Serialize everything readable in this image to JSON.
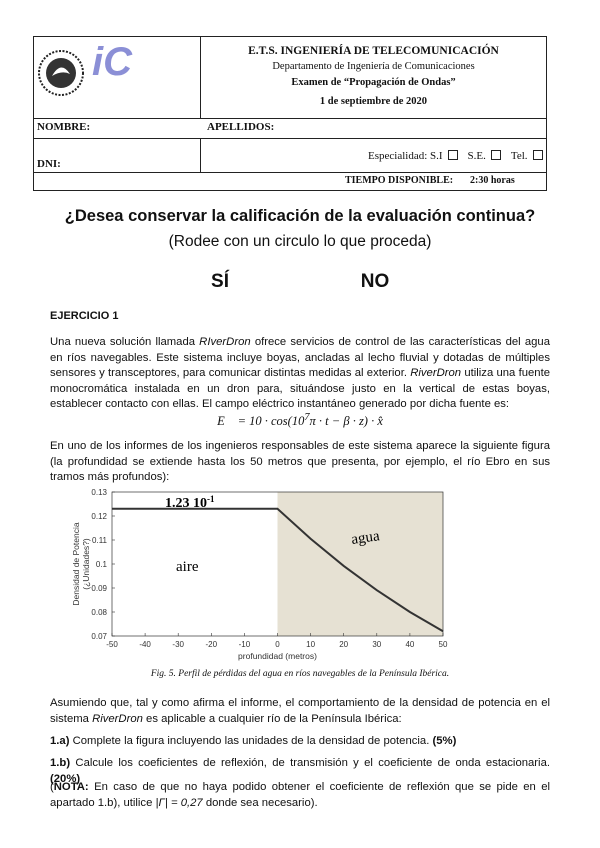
{
  "header": {
    "logo_text": "iC",
    "school": "E.T.S. INGENIERÍA DE TELECOMUNICACIÓN",
    "department": "Departamento de Ingeniería de Comunicaciones",
    "exam": "Examen de “Propagación de Ondas”",
    "date": "1 de septiembre de 2020",
    "nombre": "NOMBRE:",
    "apellidos": "APELLIDOS:",
    "dni": "DNI:",
    "especialidad": "Especialidad:",
    "options": [
      "S.I",
      "S.E.",
      "Tel."
    ],
    "tiempo_label": "TIEMPO DISPONIBLE:",
    "tiempo": "2:30 horas"
  },
  "question": {
    "title": "¿Desea conservar la calificación de la evaluación continua?",
    "subtitle": "(Rodee con un circulo lo que proceda)",
    "yes": "SÍ",
    "no": "NO"
  },
  "exercise": {
    "title": "EJERCICIO  1",
    "paragraph1": [
      "Una nueva solución llamada ",
      {
        "t": "RIverDron",
        "i": true
      },
      " ofrece servicios de control de las características del agua en ríos navegables. Este sistema incluye boyas, ancladas al lecho fluvial y dotadas de múltiples sensores y transceptores, para comunicar distintas medidas al exterior. ",
      {
        "t": "RiverDron",
        "i": true
      },
      " utiliza una fuente monocromática instalada en un dron para, situándose justo en la vertical de estas boyas, establecer contacto con ellas. El campo eléctrico instantáneo generado por dicha fuente es:"
    ],
    "formula": [
      "E⃗ = 10 · cos(10",
      {
        "t": "7",
        "sup": true
      },
      "π · t − β · z) · x̂"
    ],
    "paragraph2": [
      "En uno de los informes de los ingenieros responsables de este sistema aparece la siguiente figura (la profundidad se extiende hasta los 50 metros que presenta, por ejemplo, el río Ebro en sus tramos más profundos):"
    ],
    "caption": "Fig. 5. Perfil de pérdidas del agua en ríos navegables de la Península Ibérica.",
    "paragraph3": [
      "Asumiendo que, tal y como afirma el informe, el comportamiento de la densidad de potencia en el sistema ",
      {
        "t": "RiverDron",
        "i": true
      },
      " es aplicable a cualquier río de la Península Ibérica:"
    ],
    "item_a": [
      {
        "t": "1.a)",
        "b": true
      },
      " Complete la figura incluyendo las unidades de la densidad de potencia. ",
      {
        "t": "(5%)",
        "b": true
      }
    ],
    "item_b": [
      {
        "t": "1.b)",
        "b": true
      },
      " Calcule los coeficientes de reflexión, de transmisión y el coeficiente de onda estacionaria. ",
      {
        "t": "(20%)",
        "b": true
      }
    ],
    "note": [
      "(",
      {
        "t": "NOTA:",
        "b": true
      },
      " En caso de que no haya podido obtener el coeficiente de reflexión que se pide en el apartado 1.b), utilice ",
      {
        "t": "|Γ| = 0,27",
        "i": true
      },
      " donde sea necesario)."
    ]
  },
  "chart_data": {
    "type": "line",
    "x": [
      -50,
      0,
      10,
      20,
      30,
      40,
      50
    ],
    "series": [
      {
        "name": "densidad",
        "color": "#333333",
        "values": [
          0.123,
          0.123,
          0.1105,
          0.0992,
          0.0891,
          0.08,
          0.072
        ]
      }
    ],
    "xlim": [
      -50,
      50
    ],
    "ylim": [
      0.07,
      0.13
    ],
    "xticks": [
      -50,
      -40,
      -30,
      -20,
      -10,
      0,
      10,
      20,
      30,
      40,
      50
    ],
    "yticks": [
      0.07,
      0.08,
      0.09,
      0.1,
      0.11,
      0.12,
      0.13
    ],
    "xlabel": "profundidad (metros)",
    "ylabel": [
      "Densidad de Potencia",
      "(¿Unidades?)"
    ],
    "shade_color": "#e6e1d3",
    "annotations": [
      {
        "text": "1.23 10",
        "sup": "-1"
      },
      "aire",
      "agua"
    ]
  }
}
